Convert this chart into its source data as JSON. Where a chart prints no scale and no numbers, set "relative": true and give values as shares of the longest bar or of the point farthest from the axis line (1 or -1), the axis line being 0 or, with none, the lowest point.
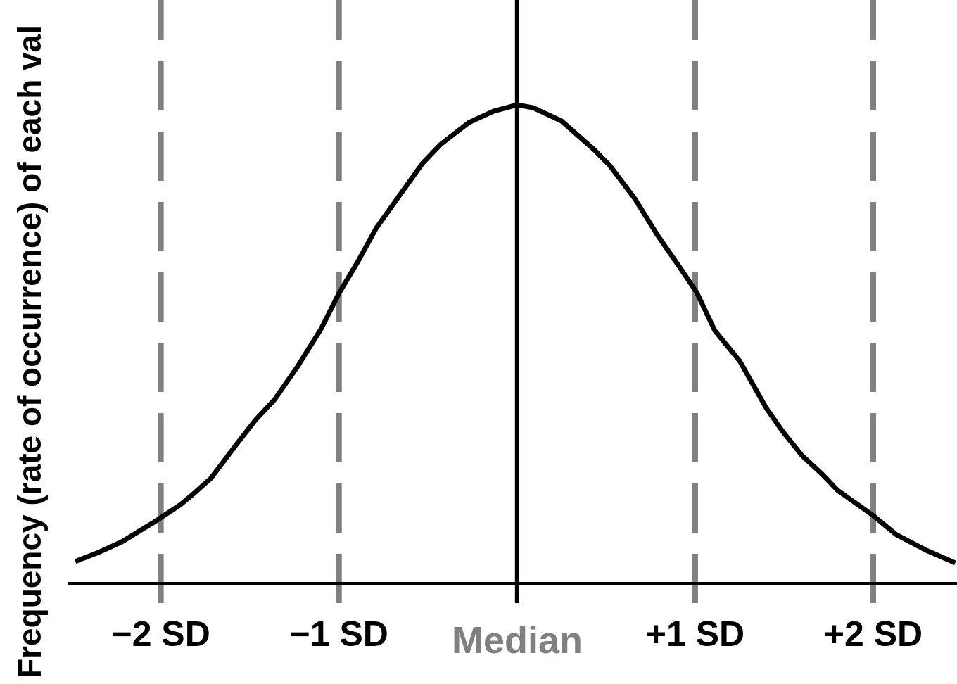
{
  "chart_data": {
    "type": "line",
    "ylabel": "Frequency (rate of occurrence) of each val",
    "relative": true,
    "xlim": [
      -2.52,
      2.47
    ],
    "xticks": [
      {
        "value": -2,
        "label": "−2 SD"
      },
      {
        "value": -1,
        "label": "−1 SD"
      },
      {
        "value": 1,
        "label": "+1 SD"
      },
      {
        "value": 2,
        "label": "+2 SD"
      }
    ],
    "x": [
      -2.48,
      -2.35,
      -2.22,
      -2.11,
      -2.04,
      -1.89,
      -1.81,
      -1.72,
      -1.57,
      -1.47,
      -1.36,
      -1.23,
      -1.1,
      -1.0,
      -0.89,
      -0.79,
      -0.66,
      -0.53,
      -0.43,
      -0.27,
      -0.13,
      0.0,
      0.09,
      0.25,
      0.43,
      0.52,
      0.66,
      0.79,
      0.92,
      1.01,
      1.11,
      1.25,
      1.4,
      1.49,
      1.6,
      1.71,
      1.8,
      2.0,
      2.13,
      2.3,
      2.46
    ],
    "series": [
      {
        "color": "#000000",
        "values": [
          0.043,
          0.062,
          0.084,
          0.109,
          0.125,
          0.162,
          0.187,
          0.217,
          0.291,
          0.339,
          0.383,
          0.453,
          0.531,
          0.605,
          0.674,
          0.742,
          0.81,
          0.878,
          0.917,
          0.963,
          0.987,
          1.0,
          0.994,
          0.966,
          0.907,
          0.873,
          0.804,
          0.726,
          0.656,
          0.606,
          0.527,
          0.463,
          0.364,
          0.316,
          0.265,
          0.227,
          0.192,
          0.139,
          0.099,
          0.066,
          0.04
        ]
      }
    ],
    "ref_lines": [
      {
        "axis": "x",
        "value": -2,
        "color": "#808080",
        "line_style": "dashed"
      },
      {
        "axis": "x",
        "value": -1,
        "color": "#808080",
        "line_style": "dashed"
      },
      {
        "axis": "x",
        "value": 0,
        "color": "#000000",
        "line_style": "solid",
        "label": "Median"
      },
      {
        "axis": "x",
        "value": 1,
        "color": "#808080",
        "line_style": "dashed"
      },
      {
        "axis": "x",
        "value": 2,
        "color": "#808080",
        "line_style": "dashed"
      }
    ]
  }
}
